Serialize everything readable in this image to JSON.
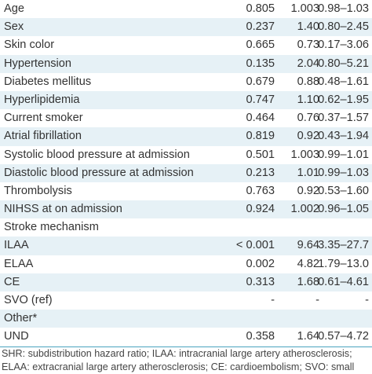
{
  "rows": [
    {
      "label": "Age",
      "p": "0.805",
      "shr": "1.003",
      "ci": "0.98–1.03",
      "shaded": false
    },
    {
      "label": "Sex",
      "p": "0.237",
      "shr": "1.40",
      "ci": "0.80–2.45",
      "shaded": true
    },
    {
      "label": "Skin color",
      "p": "0.665",
      "shr": "0.73",
      "ci": "0.17–3.06",
      "shaded": false
    },
    {
      "label": "Hypertension",
      "p": "0.135",
      "shr": "2.04",
      "ci": "0.80–5.21",
      "shaded": true
    },
    {
      "label": "Diabetes mellitus",
      "p": "0.679",
      "shr": "0.88",
      "ci": "0.48–1.61",
      "shaded": false
    },
    {
      "label": "Hyperlipidemia",
      "p": "0.747",
      "shr": "1.10",
      "ci": "0.62–1.95",
      "shaded": true
    },
    {
      "label": "Current smoker",
      "p": "0.464",
      "shr": "0.76",
      "ci": "0.37–1.57",
      "shaded": false
    },
    {
      "label": "Atrial fibrillation",
      "p": "0.819",
      "shr": "0.92",
      "ci": "0.43–1.94",
      "shaded": true
    },
    {
      "label": "Systolic blood pressure at admission",
      "p": "0.501",
      "shr": "1.003",
      "ci": "0.99–1.01",
      "shaded": false
    },
    {
      "label": "Diastolic blood pressure at admission",
      "p": "0.213",
      "shr": "1.01",
      "ci": "0.99–1.03",
      "shaded": true
    },
    {
      "label": "Thrombolysis",
      "p": "0.763",
      "shr": "0.92",
      "ci": "0.53–1.60",
      "shaded": false
    },
    {
      "label": "NIHSS at on admission",
      "p": "0.924",
      "shr": "1.002",
      "ci": "0.96–1.05",
      "shaded": true
    },
    {
      "label": "Stroke mechanism",
      "p": "",
      "shr": "",
      "ci": "",
      "shaded": false
    },
    {
      "label": "ILAA",
      "p": "< 0.001",
      "shr": "9.64",
      "ci": "3.35–27.7",
      "shaded": true
    },
    {
      "label": "ELAA",
      "p": "0.002",
      "shr": "4.82",
      "ci": "1.79–13.0",
      "shaded": false
    },
    {
      "label": "CE",
      "p": "0.313",
      "shr": "1.68",
      "ci": "0.61–4.61",
      "shaded": true
    },
    {
      "label": "SVO (ref)",
      "p": "-",
      "shr": "-",
      "ci": "-",
      "shaded": false
    },
    {
      "label": "Other*",
      "p": "",
      "shr": "",
      "ci": "",
      "shaded": true
    },
    {
      "label": "UND",
      "p": "0.358",
      "shr": "1.64",
      "ci": "0.57–4.72",
      "shaded": false
    }
  ],
  "footnote": {
    "line1": "SHR: subdistribution hazard ratio; ILAA: intracranial large artery atherosclerosis;",
    "line2": "ELAA: extracranial large artery atherosclerosis; CE: cardioembolism; SVO: small"
  }
}
